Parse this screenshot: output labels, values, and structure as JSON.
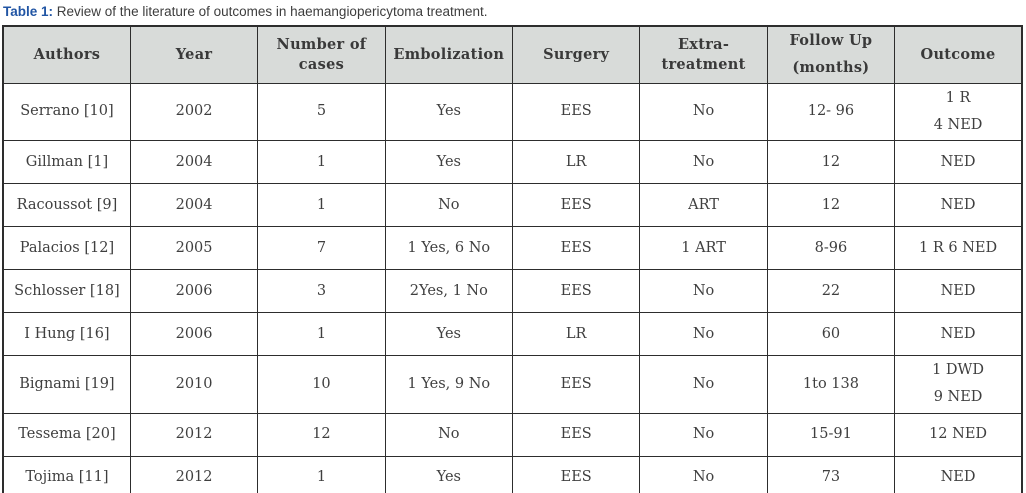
{
  "caption": {
    "label": "Table 1:",
    "text": "Review of the literature of outcomes in haemangiopericytoma treatment."
  },
  "colors": {
    "caption_accent": "#2155a4",
    "header_background": "#d8dbd9",
    "grid_border": "#2d2d2d",
    "text": "#3f3f3f"
  },
  "table": {
    "headers": [
      "Authors",
      "Year",
      "Number of\ncases",
      "Embolization",
      "Surgery",
      "Extra-\ntreatment",
      "Follow Up\n(months)",
      "Outcome"
    ],
    "rows": [
      {
        "cells": [
          "Serrano [10]",
          "2002",
          "5",
          "Yes",
          "EES",
          "No",
          "12- 96",
          "1 R\n4 NED"
        ]
      },
      {
        "cells": [
          "Gillman [1]",
          "2004",
          "1",
          "Yes",
          "LR",
          "No",
          "12",
          "NED"
        ]
      },
      {
        "cells": [
          "Racoussot [9]",
          "2004",
          "1",
          "No",
          "EES",
          "ART",
          "12",
          "NED"
        ]
      },
      {
        "cells": [
          "Palacios [12]",
          "2005",
          "7",
          "1 Yes, 6 No",
          "EES",
          "1 ART",
          "8-96",
          "1 R 6 NED"
        ]
      },
      {
        "cells": [
          "Schlosser [18]",
          "2006",
          "3",
          "2Yes, 1 No",
          "EES",
          "No",
          "22",
          "NED"
        ]
      },
      {
        "cells": [
          "I Hung [16]",
          "2006",
          "1",
          "Yes",
          "LR",
          "No",
          "60",
          "NED"
        ]
      },
      {
        "cells": [
          "Bignami [19]",
          "2010",
          "10",
          "1 Yes, 9 No",
          "EES",
          "No",
          "1to 138",
          "1 DWD\n9 NED"
        ]
      },
      {
        "cells": [
          "Tessema [20]",
          "2012",
          "12",
          "No",
          "EES",
          "No",
          "15-91",
          "12 NED"
        ]
      },
      {
        "cells": [
          "Tojima [11]",
          "2012",
          "1",
          "Yes",
          "EES",
          "No",
          "73",
          "NED"
        ]
      }
    ]
  }
}
